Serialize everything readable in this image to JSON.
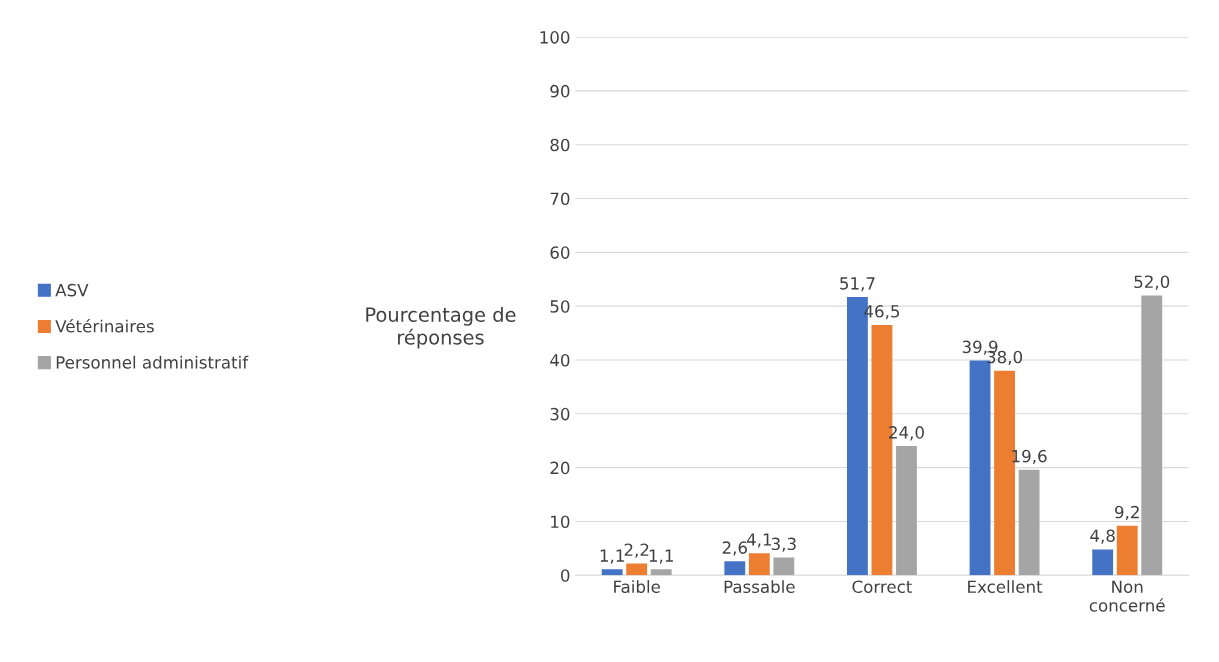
{
  "chart_data": {
    "type": "bar",
    "ylabel": "Pourcentage de réponses",
    "categories": [
      "Faible",
      "Passable",
      "Correct",
      "Excellent",
      "Non concerné"
    ],
    "series": [
      {
        "name": "ASV",
        "color": "#4472c4",
        "values": [
          1.1,
          2.6,
          51.7,
          39.9,
          4.8
        ],
        "value_labels": [
          "1,1",
          "2,6",
          "51,7",
          "39,9",
          "4,8"
        ]
      },
      {
        "name": "Vétérinaires",
        "color": "#ed7d31",
        "values": [
          2.2,
          4.1,
          46.5,
          38.0,
          9.2
        ],
        "value_labels": [
          "2,2",
          "4,1",
          "46,5",
          "38,0",
          "9,2"
        ]
      },
      {
        "name": "Personnel administratif",
        "color": "#a5a5a5",
        "values": [
          1.1,
          3.3,
          24.0,
          19.6,
          52.0
        ],
        "value_labels": [
          "1,1",
          "3,3",
          "24,0",
          "19,6",
          "52,0"
        ]
      }
    ],
    "ylim": [
      0,
      100
    ],
    "yticks": [
      0,
      10,
      20,
      30,
      40,
      50,
      60,
      70,
      80,
      90,
      100
    ],
    "grid": "y",
    "legend": "left"
  }
}
